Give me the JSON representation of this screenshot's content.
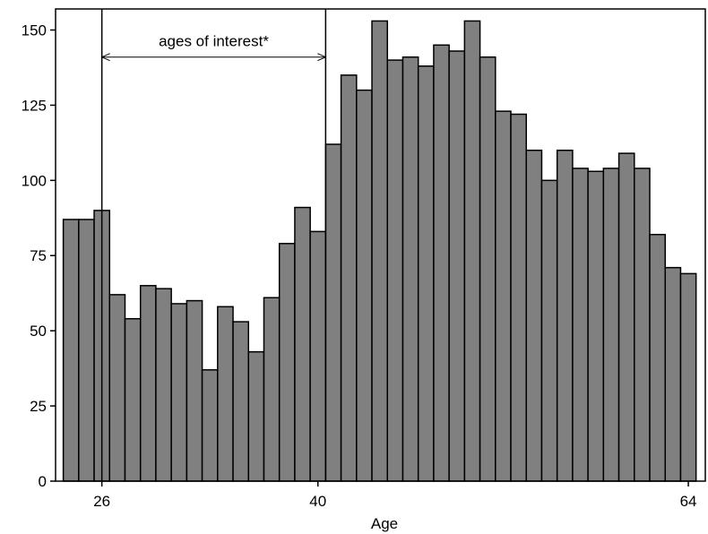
{
  "chart_data": {
    "type": "bar",
    "title": "",
    "xlabel": "Age",
    "ylabel": "",
    "x": [
      24,
      25,
      26,
      27,
      28,
      29,
      30,
      31,
      32,
      33,
      34,
      35,
      36,
      37,
      38,
      39,
      40,
      41,
      42,
      43,
      44,
      45,
      46,
      47,
      48,
      49,
      50,
      51,
      52,
      53,
      54,
      55,
      56,
      57,
      58,
      59,
      60,
      61,
      62,
      63,
      64
    ],
    "values": [
      87,
      87,
      90,
      62,
      54,
      65,
      64,
      59,
      60,
      37,
      58,
      53,
      43,
      61,
      79,
      91,
      83,
      112,
      135,
      130,
      153,
      140,
      141,
      138,
      145,
      143,
      153,
      141,
      123,
      122,
      110,
      100,
      110,
      104,
      103,
      104,
      109,
      104,
      82,
      71,
      69
    ],
    "xlim": [
      23.0,
      65.1
    ],
    "ylim": [
      0,
      157
    ],
    "x_ticks": [
      {
        "value": 26,
        "label": "26"
      },
      {
        "value": 40,
        "label": "40"
      },
      {
        "value": 64,
        "label": "64"
      }
    ],
    "y_ticks": [
      {
        "value": 0,
        "label": "0"
      },
      {
        "value": 25,
        "label": "25"
      },
      {
        "value": 50,
        "label": "50"
      },
      {
        "value": 75,
        "label": "75"
      },
      {
        "value": 100,
        "label": "100"
      },
      {
        "value": 125,
        "label": "125"
      },
      {
        "value": 150,
        "label": "150"
      }
    ],
    "bar_color": "#808080",
    "grid": false,
    "annotation": {
      "text": "ages of interest*",
      "x_start": 26,
      "x_end": 40.5,
      "y": 141
    }
  }
}
